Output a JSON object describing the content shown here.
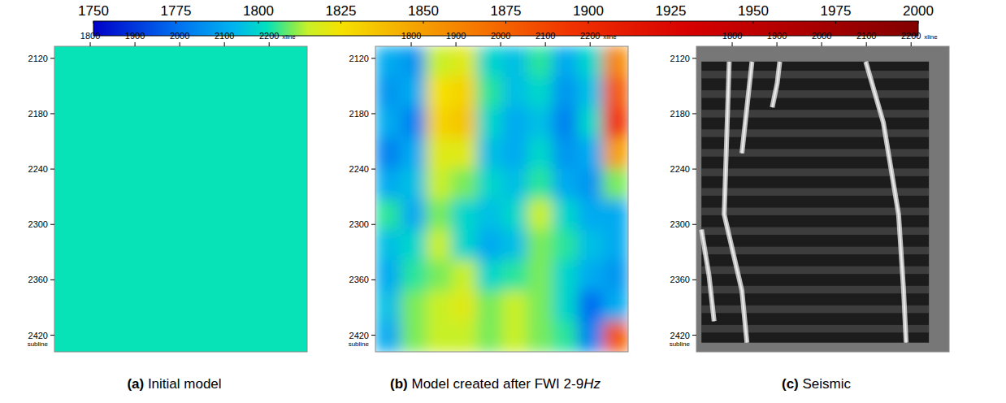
{
  "colorbar": {
    "range": [
      1750,
      2000
    ],
    "ticks": [
      1750,
      1775,
      1800,
      1825,
      1850,
      1875,
      1900,
      1925,
      1950,
      1975,
      2000
    ]
  },
  "chart_data": [
    {
      "type": "heatmap",
      "caption": {
        "label": "(a)",
        "text": "Initial model",
        "unit": null
      },
      "xlabel": "xline",
      "ylabel": "subline",
      "xlim": [
        1720,
        2285
      ],
      "ylim": [
        2438,
        2107
      ],
      "xticks": [
        1800,
        1900,
        2000,
        2100,
        2200
      ],
      "yticks": [
        2120,
        2180,
        2240,
        2300,
        2360,
        2420
      ],
      "cells": [
        [
          1803
        ]
      ]
    },
    {
      "type": "heatmap",
      "caption": {
        "label": "(b)",
        "text": "Model created after FWI 2-9",
        "unit": "Hz"
      },
      "xlabel": "xline",
      "ylabel": "subline",
      "xlim": [
        1720,
        2285
      ],
      "ylim": [
        2438,
        2107
      ],
      "xticks": [
        1800,
        1900,
        2000,
        2100,
        2200
      ],
      "yticks": [
        2120,
        2180,
        2240,
        2300,
        2360,
        2420
      ],
      "cells": [
        [
          1790,
          1785,
          1815,
          1820,
          1800,
          1795,
          1805,
          1790,
          1800,
          1860
        ],
        [
          1785,
          1790,
          1825,
          1830,
          1805,
          1795,
          1800,
          1785,
          1795,
          1880
        ],
        [
          1790,
          1780,
          1830,
          1835,
          1800,
          1790,
          1795,
          1780,
          1800,
          1895
        ],
        [
          1780,
          1790,
          1820,
          1820,
          1795,
          1790,
          1800,
          1785,
          1790,
          1850
        ],
        [
          1790,
          1795,
          1815,
          1810,
          1800,
          1795,
          1805,
          1790,
          1785,
          1810
        ],
        [
          1805,
          1790,
          1810,
          1800,
          1795,
          1800,
          1815,
          1800,
          1790,
          1790
        ],
        [
          1795,
          1800,
          1815,
          1800,
          1790,
          1795,
          1810,
          1805,
          1795,
          1790
        ],
        [
          1790,
          1805,
          1810,
          1815,
          1800,
          1805,
          1810,
          1800,
          1790,
          1785
        ],
        [
          1795,
          1810,
          1815,
          1820,
          1810,
          1815,
          1810,
          1800,
          1775,
          1790
        ],
        [
          1790,
          1810,
          1815,
          1815,
          1810,
          1815,
          1810,
          1805,
          1780,
          1880
        ]
      ]
    },
    {
      "type": "image",
      "caption": {
        "label": "(c)",
        "text": "Seismic",
        "unit": null
      },
      "xlabel": "xline",
      "ylabel": "subline",
      "xlim": [
        1720,
        2285
      ],
      "ylim": [
        2438,
        2107
      ],
      "xticks": [
        1800,
        1900,
        2000,
        2100,
        2200
      ],
      "yticks": [
        2120,
        2180,
        2240,
        2300,
        2360,
        2420
      ]
    }
  ]
}
